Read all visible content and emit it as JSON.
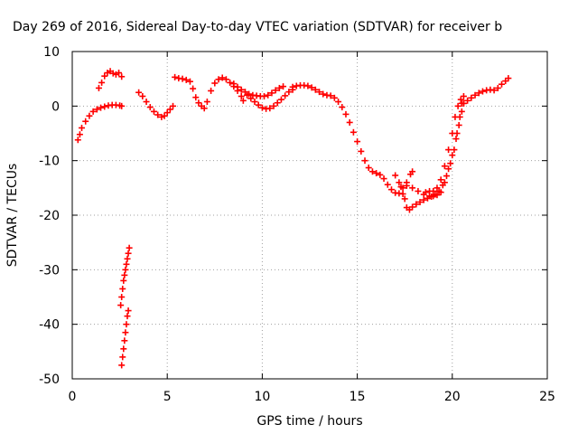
{
  "chart_data": {
    "type": "scatter",
    "title": "Day 269 of 2016, Sidereal Day-to-day VTEC variation (SDTVAR) for receiver b",
    "xlabel": "GPS time / hours",
    "ylabel": "SDTVAR / TECUs",
    "xlim": [
      0,
      25
    ],
    "ylim": [
      -50,
      10
    ],
    "xticks": [
      0,
      5,
      10,
      15,
      20,
      25
    ],
    "yticks": [
      -50,
      -40,
      -30,
      -20,
      -10,
      0,
      10
    ],
    "grid": true,
    "legend": "none",
    "marker": "plus",
    "color": "#ff0000",
    "series": [
      {
        "points": [
          [
            0.3,
            -6.2
          ],
          [
            0.4,
            -5.2
          ],
          [
            0.5,
            -4.0
          ],
          [
            0.7,
            -2.8
          ],
          [
            0.9,
            -1.8
          ],
          [
            1.1,
            -1.0
          ],
          [
            1.3,
            -0.6
          ],
          [
            1.5,
            -0.3
          ],
          [
            1.7,
            -0.1
          ],
          [
            1.9,
            0.1
          ],
          [
            2.1,
            0.2
          ],
          [
            2.3,
            0.2
          ],
          [
            2.5,
            0.1
          ],
          [
            2.6,
            0.0
          ],
          [
            1.4,
            3.3
          ],
          [
            1.55,
            4.3
          ],
          [
            1.7,
            5.5
          ],
          [
            1.85,
            6.1
          ],
          [
            2.0,
            6.4
          ],
          [
            2.15,
            6.0
          ],
          [
            2.3,
            5.8
          ],
          [
            2.45,
            6.1
          ],
          [
            2.6,
            5.4
          ],
          [
            3.5,
            2.5
          ],
          [
            3.7,
            1.8
          ],
          [
            3.9,
            0.8
          ],
          [
            4.1,
            -0.2
          ],
          [
            4.3,
            -1.0
          ],
          [
            4.5,
            -1.6
          ],
          [
            4.7,
            -2.0
          ],
          [
            4.85,
            -1.8
          ],
          [
            5.0,
            -1.2
          ],
          [
            5.15,
            -0.6
          ],
          [
            5.3,
            0.0
          ],
          [
            5.4,
            5.3
          ],
          [
            5.6,
            5.1
          ],
          [
            5.8,
            5.0
          ],
          [
            6.0,
            4.8
          ],
          [
            6.2,
            4.5
          ],
          [
            6.35,
            3.2
          ],
          [
            6.5,
            1.6
          ],
          [
            6.65,
            0.6
          ],
          [
            6.8,
            0.0
          ],
          [
            6.95,
            -0.4
          ],
          [
            7.1,
            0.8
          ],
          [
            7.3,
            2.8
          ],
          [
            7.5,
            4.2
          ],
          [
            7.7,
            4.9
          ],
          [
            7.9,
            5.2
          ],
          [
            8.1,
            4.9
          ],
          [
            8.3,
            4.3
          ],
          [
            8.5,
            3.6
          ],
          [
            8.7,
            2.8
          ],
          [
            8.9,
            1.8
          ],
          [
            9.0,
            1.0
          ],
          [
            8.5,
            4.1
          ],
          [
            8.7,
            3.5
          ],
          [
            8.9,
            3.0
          ],
          [
            9.1,
            2.6
          ],
          [
            9.3,
            2.2
          ],
          [
            9.5,
            2.0
          ],
          [
            9.7,
            1.9
          ],
          [
            9.9,
            1.8
          ],
          [
            10.1,
            1.8
          ],
          [
            10.3,
            2.0
          ],
          [
            10.5,
            2.4
          ],
          [
            10.7,
            2.9
          ],
          [
            10.9,
            3.3
          ],
          [
            11.1,
            3.6
          ],
          [
            9.2,
            2.0
          ],
          [
            9.4,
            1.4
          ],
          [
            9.6,
            0.8
          ],
          [
            9.8,
            0.2
          ],
          [
            10.0,
            -0.3
          ],
          [
            10.2,
            -0.5
          ],
          [
            10.4,
            -0.4
          ],
          [
            10.6,
            0.0
          ],
          [
            10.8,
            0.6
          ],
          [
            11.0,
            1.2
          ],
          [
            11.2,
            1.9
          ],
          [
            11.4,
            2.6
          ],
          [
            11.6,
            3.0
          ],
          [
            11.6,
            3.5
          ],
          [
            11.8,
            3.7
          ],
          [
            12.0,
            3.8
          ],
          [
            12.2,
            3.8
          ],
          [
            12.4,
            3.7
          ],
          [
            12.6,
            3.4
          ],
          [
            12.8,
            3.0
          ],
          [
            13.0,
            2.6
          ],
          [
            13.2,
            2.2
          ],
          [
            13.4,
            2.0
          ],
          [
            13.6,
            1.9
          ],
          [
            13.8,
            1.5
          ],
          [
            14.0,
            0.8
          ],
          [
            14.2,
            -0.2
          ],
          [
            14.4,
            -1.5
          ],
          [
            14.6,
            -3.0
          ],
          [
            14.8,
            -4.8
          ],
          [
            15.0,
            -6.5
          ],
          [
            15.2,
            -8.3
          ],
          [
            15.4,
            -10.0
          ],
          [
            15.6,
            -11.3
          ],
          [
            15.8,
            -12.0
          ],
          [
            16.0,
            -12.3
          ],
          [
            16.2,
            -12.6
          ],
          [
            16.4,
            -13.3
          ],
          [
            16.6,
            -14.4
          ],
          [
            16.8,
            -15.3
          ],
          [
            17.0,
            -15.9
          ],
          [
            17.2,
            -16.0
          ],
          [
            17.4,
            -16.1
          ],
          [
            17.5,
            -17.0
          ],
          [
            17.6,
            -18.6
          ],
          [
            17.75,
            -19.0
          ],
          [
            17.9,
            -18.5
          ],
          [
            18.1,
            -18.0
          ],
          [
            18.3,
            -17.6
          ],
          [
            18.5,
            -17.2
          ],
          [
            18.7,
            -16.9
          ],
          [
            18.9,
            -16.6
          ],
          [
            17.0,
            -12.7
          ],
          [
            17.2,
            -14.0
          ],
          [
            17.4,
            -15.0
          ],
          [
            17.6,
            -14.0
          ],
          [
            17.8,
            -12.5
          ],
          [
            17.9,
            -12.0
          ],
          [
            17.3,
            -14.8
          ],
          [
            17.6,
            -14.6
          ],
          [
            17.9,
            -15.0
          ],
          [
            18.2,
            -15.6
          ],
          [
            18.5,
            -16.2
          ],
          [
            18.8,
            -16.5
          ],
          [
            19.1,
            -16.2
          ],
          [
            19.3,
            -15.6
          ],
          [
            19.5,
            -14.5
          ],
          [
            19.7,
            -12.8
          ],
          [
            19.9,
            -10.5
          ],
          [
            20.1,
            -8.0
          ],
          [
            20.25,
            -5.0
          ],
          [
            20.4,
            -2.0
          ],
          [
            20.5,
            0.5
          ],
          [
            20.6,
            1.8
          ],
          [
            18.6,
            -15.8
          ],
          [
            18.8,
            -15.6
          ],
          [
            19.0,
            -15.6
          ],
          [
            19.2,
            -15.0
          ],
          [
            19.4,
            -13.5
          ],
          [
            19.6,
            -11.0
          ],
          [
            19.8,
            -8.0
          ],
          [
            20.0,
            -5.0
          ],
          [
            20.15,
            -2.0
          ],
          [
            20.3,
            0.0
          ],
          [
            20.45,
            1.2
          ],
          [
            19.0,
            -16.5
          ],
          [
            19.2,
            -16.3
          ],
          [
            19.4,
            -15.8
          ],
          [
            19.6,
            -14.0
          ],
          [
            19.8,
            -11.5
          ],
          [
            20.0,
            -9.0
          ],
          [
            20.2,
            -6.0
          ],
          [
            20.35,
            -3.5
          ],
          [
            20.5,
            -1.0
          ],
          [
            20.6,
            0.5
          ],
          [
            20.6,
            0.5
          ],
          [
            20.8,
            1.0
          ],
          [
            21.0,
            1.5
          ],
          [
            21.2,
            2.0
          ],
          [
            21.4,
            2.4
          ],
          [
            21.6,
            2.7
          ],
          [
            21.8,
            2.9
          ],
          [
            22.0,
            3.0
          ],
          [
            22.2,
            2.9
          ],
          [
            22.4,
            3.3
          ],
          [
            22.6,
            4.0
          ],
          [
            22.8,
            4.6
          ],
          [
            22.95,
            5.1
          ],
          [
            2.55,
            -36.5
          ],
          [
            2.6,
            -35.0
          ],
          [
            2.65,
            -33.5
          ],
          [
            2.7,
            -32.0
          ],
          [
            2.75,
            -31.0
          ],
          [
            2.8,
            -30.0
          ],
          [
            2.85,
            -29.0
          ],
          [
            2.9,
            -28.0
          ],
          [
            2.95,
            -27.0
          ],
          [
            3.0,
            -26.0
          ],
          [
            2.6,
            -47.5
          ],
          [
            2.65,
            -46.0
          ],
          [
            2.7,
            -44.5
          ],
          [
            2.75,
            -43.0
          ],
          [
            2.8,
            -41.5
          ],
          [
            2.85,
            -40.0
          ],
          [
            2.9,
            -38.5
          ],
          [
            2.95,
            -37.5
          ]
        ]
      }
    ]
  }
}
